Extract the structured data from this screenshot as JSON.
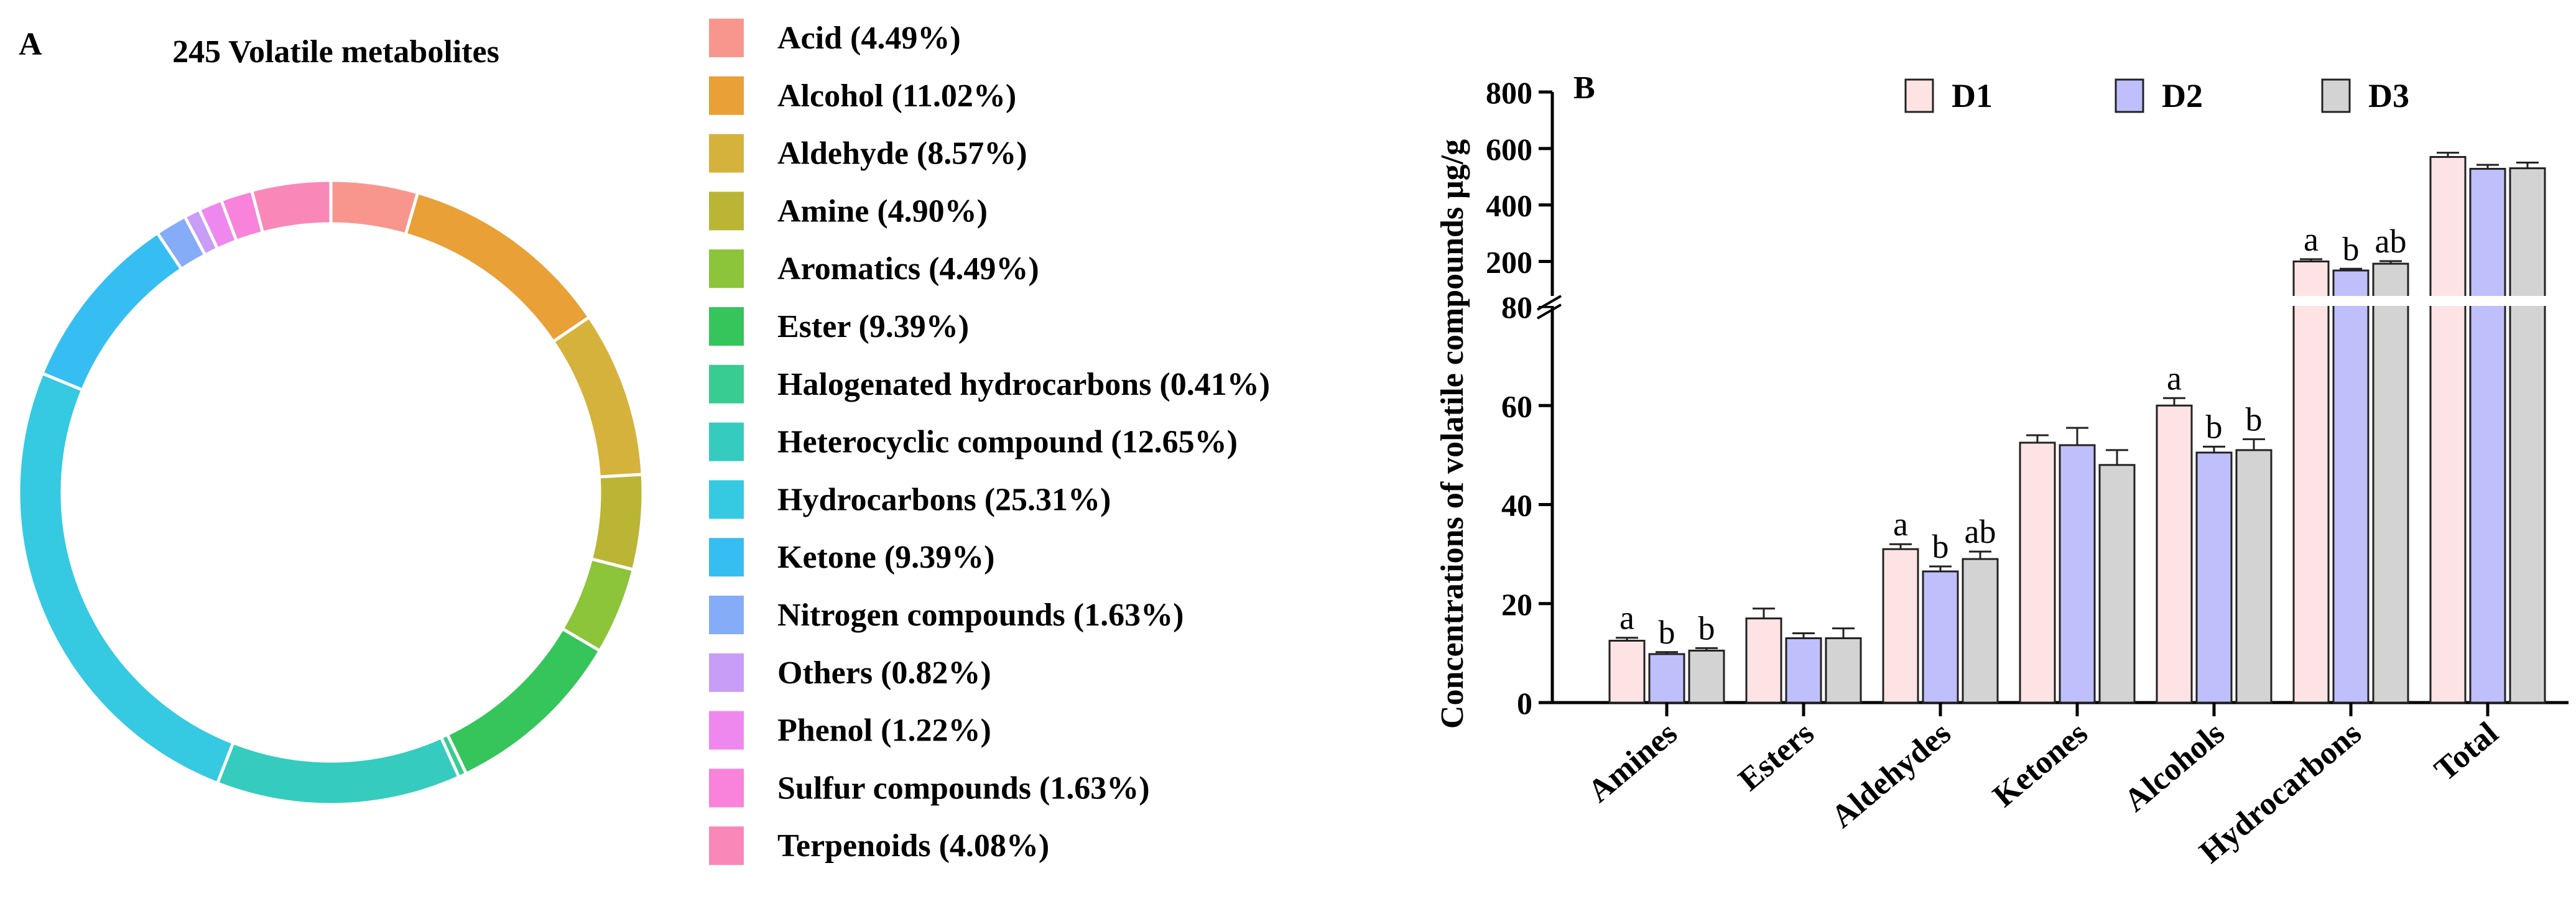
{
  "chart_data": [
    {
      "type": "pie",
      "panel_label": "A",
      "title": "245 Volatile metabolites",
      "donut": true,
      "categories": [
        "Acid (4.49%)",
        "Alcohol (11.02%)",
        "Aldehyde (8.57%)",
        "Amine (4.90%)",
        "Aromatics (4.49%)",
        "Ester (9.39%)",
        "Halogenated hydrocarbons (0.41%)",
        "Heterocyclic compound (12.65%)",
        "Hydrocarbons (25.31%)",
        "Ketone (9.39%)",
        "Nitrogen compounds (1.63%)",
        "Others (0.82%)",
        "Phenol  (1.22%)",
        "Sulfur compounds (1.63%)",
        "Terpenoids (4.08%)"
      ],
      "values": [
        4.49,
        11.02,
        8.57,
        4.9,
        4.49,
        9.39,
        0.41,
        12.65,
        25.31,
        9.39,
        1.63,
        0.82,
        1.22,
        1.63,
        4.08
      ],
      "colors": [
        "#F8968E",
        "#E9A037",
        "#D5B23C",
        "#BBB535",
        "#8CC43A",
        "#35C55B",
        "#39CC91",
        "#35CCBF",
        "#36C9E2",
        "#36BEF3",
        "#84ACF7",
        "#C79DF7",
        "#EF88EE",
        "#F982DA",
        "#F988B8"
      ],
      "legend_position": "right"
    },
    {
      "type": "bar",
      "panel_label": "B",
      "ylabel": "Concentrations of volatile compounds μg/g",
      "xlabel": "",
      "categories": [
        "Amines",
        "Esters",
        "Aldehydes",
        "Ketones",
        "Alcohols",
        "Hydrocarbons",
        "Total"
      ],
      "series": [
        {
          "name": "D1",
          "color": "#FDE3E3",
          "values": [
            12.5,
            17.0,
            31.0,
            52.5,
            60.0,
            200,
            570
          ],
          "errors": [
            0.6,
            2.0,
            1.0,
            1.5,
            1.5,
            8,
            15
          ],
          "letters": [
            "a",
            "",
            "a",
            "",
            "a",
            "a",
            ""
          ]
        },
        {
          "name": "D2",
          "color": "#BFBFFC",
          "values": [
            9.8,
            13.0,
            26.5,
            52.0,
            50.5,
            168,
            528
          ],
          "errors": [
            0.4,
            1.0,
            1.0,
            3.5,
            1.2,
            6,
            14
          ],
          "letters": [
            "b",
            "",
            "b",
            "",
            "b",
            "b",
            ""
          ]
        },
        {
          "name": "D3",
          "color": "#D3D3D3",
          "values": [
            10.5,
            13.0,
            29.0,
            48.0,
            51.0,
            192,
            530
          ],
          "errors": [
            0.5,
            2.0,
            1.5,
            3.0,
            2.2,
            9,
            20
          ],
          "letters": [
            "b",
            "",
            "ab",
            "",
            "b",
            "ab",
            ""
          ]
        }
      ],
      "y_axis": {
        "lower_range": [
          0,
          80
        ],
        "lower_ticks": [
          "0",
          "20",
          "40",
          "60",
          "80"
        ],
        "upper_range": [
          80,
          800
        ],
        "upper_ticks": [
          "200",
          "400",
          "600",
          "800"
        ],
        "broken": true
      },
      "legend_position": "top"
    }
  ]
}
